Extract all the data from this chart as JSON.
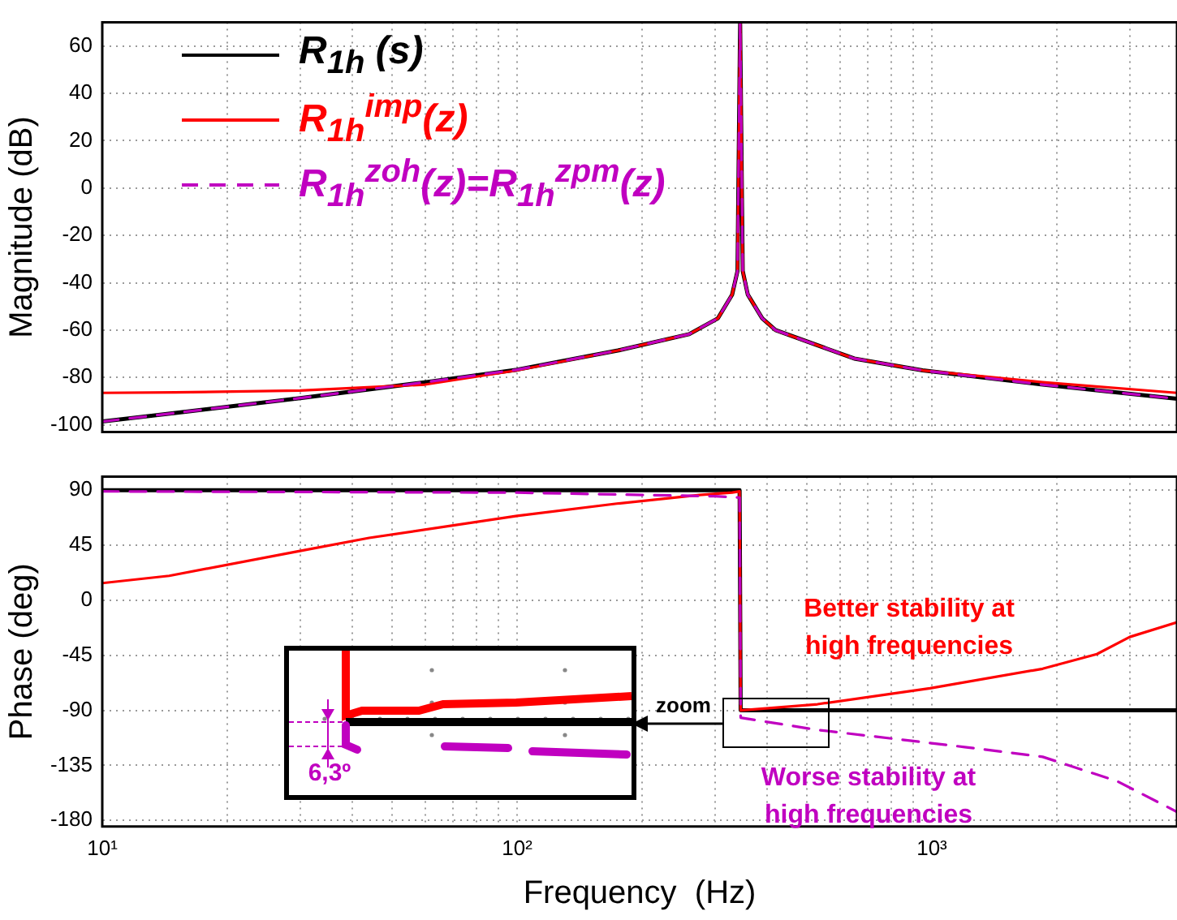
{
  "chart_data": [
    {
      "type": "line",
      "ylabel": "Magnitude (dB)",
      "log": "x",
      "grid": true,
      "legend": "top left",
      "marker": "none",
      "tick_labels": "y",
      "xlim": [
        10,
        3900
      ],
      "xticks": [
        {
          "value": 10,
          "label": null
        },
        {
          "value": 20,
          "label": null
        },
        {
          "value": 30,
          "label": null
        },
        {
          "value": 40,
          "label": null
        },
        {
          "value": 50,
          "label": null
        },
        {
          "value": 60,
          "label": null
        },
        {
          "value": 70,
          "label": null
        },
        {
          "value": 80,
          "label": null
        },
        {
          "value": 90,
          "label": null
        },
        {
          "value": 100,
          "label": null
        },
        {
          "value": 200,
          "label": null
        },
        {
          "value": 300,
          "label": null
        },
        {
          "value": 400,
          "label": null
        },
        {
          "value": 500,
          "label": null
        },
        {
          "value": 600,
          "label": null
        },
        {
          "value": 700,
          "label": null
        },
        {
          "value": 800,
          "label": null
        },
        {
          "value": 900,
          "label": null
        },
        {
          "value": 1000,
          "label": null
        },
        {
          "value": 2000,
          "label": null
        },
        {
          "value": 3000,
          "label": null
        }
      ],
      "ylim": [
        -103,
        70
      ],
      "yticks": [
        -100,
        -80,
        -60,
        -40,
        -20,
        0,
        20,
        40,
        60
      ],
      "series": [
        {
          "name": "R$_{1h}$ (s)",
          "color": "#000000",
          "x": [
            10,
            15,
            30,
            60,
            100,
            175,
            260,
            305,
            330,
            340,
            345,
            350,
            360,
            390,
            420,
            650,
            950,
            1850,
            3900
          ],
          "values": [
            -98.6,
            -95,
            -88.7,
            -82,
            -76.7,
            -68.6,
            -61.7,
            -55,
            -45,
            -35,
            70,
            -35,
            -45,
            -55,
            -60,
            -72,
            -77,
            -83,
            -89
          ]
        },
        {
          "name": "R$_{1h}$$^{imp}$(z)",
          "color": "#ff0000",
          "x": [
            10,
            15,
            30,
            60,
            100,
            175,
            260,
            305,
            330,
            340,
            345,
            350,
            360,
            390,
            420,
            650,
            950,
            1850,
            3900
          ],
          "values": [
            -86.5,
            -86.3,
            -85.5,
            -83,
            -77,
            -68.6,
            -61.7,
            -55,
            -45,
            -35,
            70,
            -35,
            -45,
            -55,
            -60,
            -72,
            -77,
            -82,
            -86.5
          ]
        },
        {
          "name": "R$_{1h}$$^{zoh}$(z)=R$_{1h}$$^{zpm}$(z)",
          "color": "#c000c0",
          "line_style": "dashed",
          "x": [
            10,
            15,
            30,
            60,
            100,
            175,
            260,
            305,
            330,
            340,
            345,
            350,
            360,
            390,
            420,
            650,
            950,
            1850,
            3900
          ],
          "values": [
            -98.6,
            -95,
            -88.7,
            -82,
            -76.7,
            -68.6,
            -61.7,
            -55,
            -45,
            -35,
            70,
            -35,
            -45,
            -55,
            -60,
            -72,
            -77,
            -83,
            -89
          ]
        }
      ]
    },
    {
      "type": "line",
      "xlabel": "Frequency  (Hz)",
      "ylabel": "Phase (deg)",
      "log": "x",
      "grid": true,
      "marker": "none",
      "xlim": [
        10,
        3900
      ],
      "xticks": [
        {
          "value": 10,
          "label": "10¹"
        },
        {
          "value": 20,
          "label": null
        },
        {
          "value": 30,
          "label": null
        },
        {
          "value": 40,
          "label": null
        },
        {
          "value": 50,
          "label": null
        },
        {
          "value": 60,
          "label": null
        },
        {
          "value": 70,
          "label": null
        },
        {
          "value": 80,
          "label": null
        },
        {
          "value": 90,
          "label": null
        },
        {
          "value": 100,
          "label": "10²"
        },
        {
          "value": 200,
          "label": null
        },
        {
          "value": 300,
          "label": null
        },
        {
          "value": 400,
          "label": null
        },
        {
          "value": 500,
          "label": null
        },
        {
          "value": 600,
          "label": null
        },
        {
          "value": 700,
          "label": null
        },
        {
          "value": 800,
          "label": null
        },
        {
          "value": 900,
          "label": null
        },
        {
          "value": 1000,
          "label": "10³"
        },
        {
          "value": 2000,
          "label": null
        },
        {
          "value": 3000,
          "label": null
        }
      ],
      "ylim": [
        -185,
        101
      ],
      "yticks": [
        -180,
        -135,
        -90,
        -45,
        0,
        45,
        90
      ],
      "series": [
        {
          "color": "#000000",
          "x": [
            10,
            344,
            346,
            3900
          ],
          "values": [
            90,
            90,
            -90,
            -90
          ]
        },
        {
          "color": "#ff0000",
          "x": [
            10,
            14.5,
            29.6,
            44,
            100,
            174,
            275,
            330,
            344,
            346,
            530,
            990,
            1850,
            2500,
            3000,
            3900
          ],
          "values": [
            14,
            20,
            40,
            51,
            69,
            79,
            86,
            88,
            89,
            -90,
            -85,
            -72,
            -56,
            -44,
            -30,
            -18
          ]
        },
        {
          "color": "#c000c0",
          "line_style": "dashed",
          "x": [
            10,
            100,
            300,
            344,
            346,
            530,
            1200,
            1850,
            2800,
            3900
          ],
          "values": [
            89,
            88,
            85,
            84,
            -96,
            -106,
            -120,
            -128,
            -148,
            -173
          ]
        }
      ],
      "annotations": [
        "Better stability at high frequencies",
        "Worse stability at high frequencies",
        "zoom",
        "6,3º"
      ]
    }
  ]
}
